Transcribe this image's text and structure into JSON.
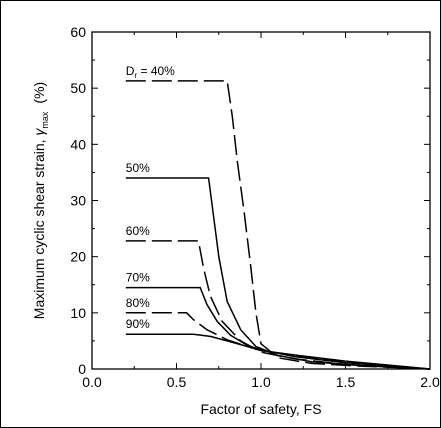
{
  "chart_data": {
    "type": "line",
    "title": "",
    "xlabel": "Factor of safety,  FS",
    "ylabel_main": "Maximum cyclic shear strain, ",
    "ylabel_symbol": "γ",
    "ylabel_subscript": "max",
    "ylabel_unit": "(%)",
    "xlim": [
      0.0,
      2.0
    ],
    "ylim": [
      0,
      60
    ],
    "x_ticks": [
      "0.0",
      "0.5",
      "1.0",
      "1.5",
      "2.0"
    ],
    "y_ticks": [
      "0",
      "10",
      "20",
      "30",
      "40",
      "50",
      "60"
    ],
    "grid": false,
    "series": [
      {
        "label_prefix": "D",
        "label_sub": "r",
        "label_suffix": " = 40%",
        "dashed": true,
        "points": [
          [
            0.2,
            51.3
          ],
          [
            0.8,
            51.3
          ],
          [
            0.83,
            45
          ],
          [
            0.86,
            37
          ],
          [
            0.9,
            28
          ],
          [
            0.94,
            18
          ],
          [
            0.97,
            10
          ],
          [
            1.0,
            4.5
          ],
          [
            1.1,
            2.0
          ],
          [
            1.3,
            1.0
          ],
          [
            1.6,
            0.5
          ],
          [
            2.0,
            0
          ]
        ]
      },
      {
        "label": "50%",
        "dashed": false,
        "points": [
          [
            0.2,
            34.0
          ],
          [
            0.69,
            34.0
          ],
          [
            0.72,
            27
          ],
          [
            0.75,
            20
          ],
          [
            0.8,
            12
          ],
          [
            0.88,
            7
          ],
          [
            0.97,
            4
          ],
          [
            1.1,
            2.4
          ],
          [
            1.3,
            1.3
          ],
          [
            1.6,
            0.6
          ],
          [
            2.0,
            0
          ]
        ]
      },
      {
        "label": "60%",
        "dashed": true,
        "points": [
          [
            0.2,
            22.8
          ],
          [
            0.63,
            22.8
          ],
          [
            0.66,
            18
          ],
          [
            0.7,
            13
          ],
          [
            0.77,
            8.5
          ],
          [
            0.88,
            5
          ],
          [
            1.0,
            3.0
          ],
          [
            1.2,
            1.8
          ],
          [
            1.5,
            0.8
          ],
          [
            2.0,
            0
          ]
        ]
      },
      {
        "label": "70%",
        "dashed": false,
        "points": [
          [
            0.2,
            14.5
          ],
          [
            0.64,
            14.5
          ],
          [
            0.68,
            11.5
          ],
          [
            0.74,
            8.5
          ],
          [
            0.82,
            6.0
          ],
          [
            0.92,
            4.2
          ],
          [
            1.0,
            3.4
          ],
          [
            1.2,
            2.2
          ],
          [
            1.5,
            1.1
          ],
          [
            2.0,
            0
          ]
        ]
      },
      {
        "label": "80%",
        "dashed": true,
        "points": [
          [
            0.2,
            10.0
          ],
          [
            0.56,
            10.0
          ],
          [
            0.6,
            8.8
          ],
          [
            0.68,
            7.0
          ],
          [
            0.8,
            5.2
          ],
          [
            0.92,
            4.0
          ],
          [
            1.0,
            3.3
          ],
          [
            1.2,
            2.4
          ],
          [
            1.5,
            1.3
          ],
          [
            2.0,
            0
          ]
        ]
      },
      {
        "label": "90%",
        "dashed": false,
        "points": [
          [
            0.2,
            6.2
          ],
          [
            0.6,
            6.2
          ],
          [
            0.7,
            5.8
          ],
          [
            0.8,
            5.0
          ],
          [
            0.92,
            4.0
          ],
          [
            1.0,
            3.3
          ],
          [
            1.2,
            2.5
          ],
          [
            1.5,
            1.4
          ],
          [
            2.0,
            0
          ]
        ]
      }
    ]
  }
}
